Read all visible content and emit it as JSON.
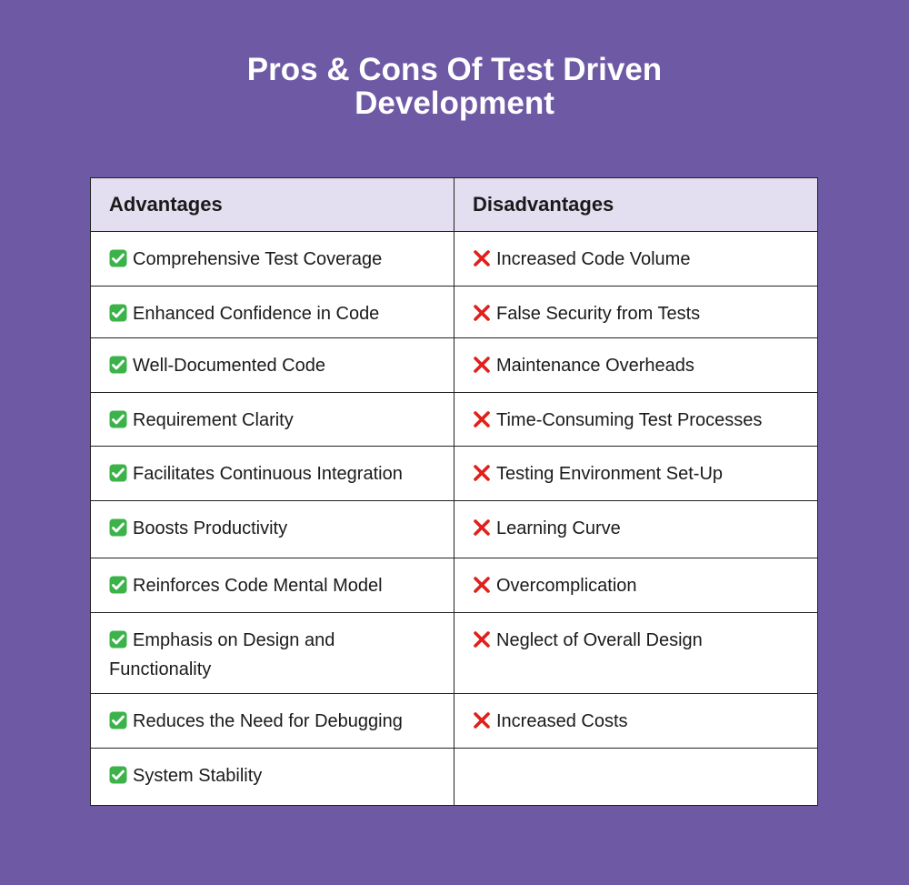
{
  "title_line1": "Pros & Cons Of Test Driven",
  "title_line2": "Development",
  "headers": {
    "advantages": "Advantages",
    "disadvantages": "Disadvantages"
  },
  "colors": {
    "background": "#6e59a5",
    "header": "#e3def0",
    "check": "#3cb34a",
    "cross": "#e0201b"
  },
  "icons": {
    "advantage": "check-box-icon",
    "disadvantage": "cross-icon"
  },
  "rows": [
    {
      "pro": "Comprehensive Test Coverage",
      "con": "Increased Code Volume"
    },
    {
      "pro": "Enhanced Confidence in Code",
      "con": "False Security from Tests"
    },
    {
      "pro": "Well-Documented Code",
      "con": "Maintenance Overheads"
    },
    {
      "pro": "Requirement Clarity",
      "con": "Time-Consuming Test Processes"
    },
    {
      "pro": "Facilitates Continuous Integration",
      "con": "Testing Environment Set-Up"
    },
    {
      "pro": "Boosts Productivity",
      "con": "Learning Curve"
    },
    {
      "pro": "Reinforces Code Mental Model",
      "con": "Overcomplication"
    },
    {
      "pro": "Emphasis on Design and Functionality",
      "con": "Neglect of Overall Design"
    },
    {
      "pro": "Reduces the Need for Debugging",
      "con": "Increased Costs"
    },
    {
      "pro": "System Stability",
      "con": ""
    }
  ]
}
